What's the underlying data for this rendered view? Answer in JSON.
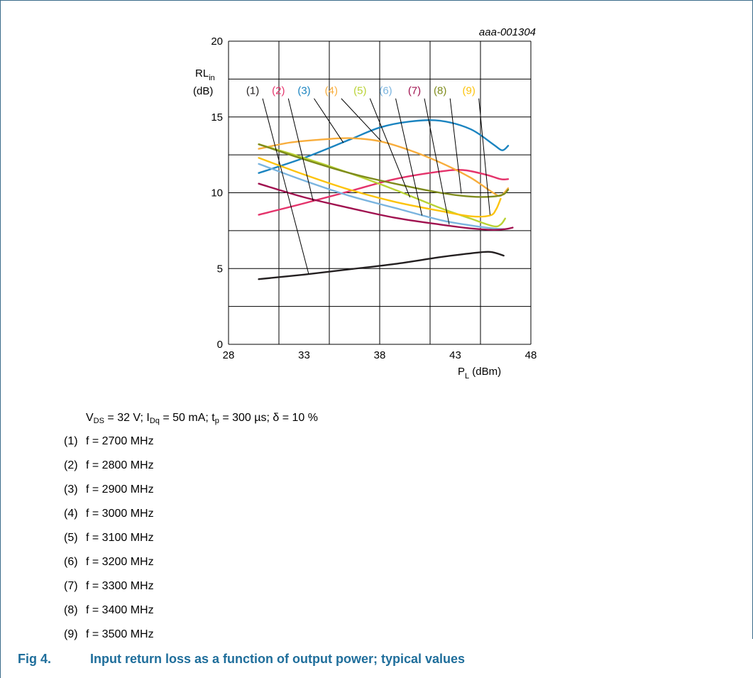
{
  "figure_id": "aaa-001304",
  "conditions": {
    "vds": "V",
    "vds_sub": "DS",
    "vds_val": " = 32 V; ",
    "idq": "I",
    "idq_sub": "Dq",
    "idq_val": " = 50 mA; ",
    "tp": "t",
    "tp_sub": "p",
    "tp_val": " = 300 µs; δ = 10 %"
  },
  "caption": {
    "number": "Fig 4.",
    "text": "Input return loss as a function of output power; typical values"
  },
  "legend": [
    {
      "num": "(1)",
      "text": "f = 2700 MHz"
    },
    {
      "num": "(2)",
      "text": "f = 2800 MHz"
    },
    {
      "num": "(3)",
      "text": "f = 2900 MHz"
    },
    {
      "num": "(4)",
      "text": "f = 3000 MHz"
    },
    {
      "num": "(5)",
      "text": "f = 3100 MHz"
    },
    {
      "num": "(6)",
      "text": "f = 3200 MHz"
    },
    {
      "num": "(7)",
      "text": "f = 3300 MHz"
    },
    {
      "num": "(8)",
      "text": "f = 3400 MHz"
    },
    {
      "num": "(9)",
      "text": "f = 3500 MHz"
    }
  ],
  "chart_data": {
    "type": "line",
    "xlabel": "P",
    "xlabel_sub": "L",
    "xlabel_unit": " (dBm)",
    "ylabel": "RL",
    "ylabel_sub": "in",
    "ylabel_unit": "(dB)",
    "xlim": [
      28,
      48
    ],
    "ylim": [
      0,
      20
    ],
    "xticks": [
      28,
      33,
      38,
      43,
      48
    ],
    "yticks": [
      0,
      5,
      10,
      15,
      20
    ],
    "xgrid_step": 3.333,
    "ygrid_step": 2.5,
    "grid": true,
    "series": [
      {
        "name": "(1)",
        "color": "#231f20",
        "x": [
          30,
          33,
          36,
          39,
          42,
          44,
          45.3,
          46.2
        ],
        "y": [
          4.3,
          4.6,
          4.95,
          5.3,
          5.75,
          6.0,
          6.1,
          5.85
        ]
      },
      {
        "name": "(2)",
        "color": "#e4336b",
        "x": [
          30,
          33,
          36,
          39,
          42,
          43.5,
          45,
          46,
          46.5
        ],
        "y": [
          8.55,
          9.3,
          10.1,
          10.9,
          11.4,
          11.5,
          11.2,
          10.9,
          10.9
        ]
      },
      {
        "name": "(3)",
        "color": "#1b84c0",
        "x": [
          30,
          33,
          36,
          38,
          40,
          42,
          44,
          45.5,
          46.1,
          46.5
        ],
        "y": [
          11.3,
          12.3,
          13.5,
          14.3,
          14.7,
          14.75,
          14.2,
          13.2,
          12.8,
          13.1
        ]
      },
      {
        "name": "(4)",
        "color": "#f8ad3c",
        "x": [
          30,
          32,
          34,
          36,
          38,
          40,
          42,
          44,
          45.5,
          46,
          46.5
        ],
        "y": [
          12.9,
          13.3,
          13.5,
          13.6,
          13.4,
          12.8,
          12.0,
          11.0,
          10.0,
          9.8,
          10.3
        ]
      },
      {
        "name": "(5)",
        "color": "#b9d234",
        "x": [
          30,
          33,
          36,
          39,
          42,
          44,
          45.5,
          46,
          46.3
        ],
        "y": [
          13.2,
          12.3,
          11.3,
          10.2,
          9.0,
          8.3,
          7.8,
          7.9,
          8.3
        ]
      },
      {
        "name": "(6)",
        "color": "#7ab4df",
        "x": [
          30,
          33,
          36,
          39,
          42,
          44,
          45.5,
          46.2
        ],
        "y": [
          11.9,
          10.8,
          9.8,
          9.0,
          8.2,
          7.85,
          7.65,
          7.6
        ]
      },
      {
        "name": "(7)",
        "color": "#a0114f",
        "x": [
          30,
          33,
          36,
          39,
          42,
          44,
          45.5,
          46.3,
          46.8
        ],
        "y": [
          10.6,
          9.7,
          9.0,
          8.35,
          7.9,
          7.65,
          7.55,
          7.6,
          7.7
        ]
      },
      {
        "name": "(8)",
        "color": "#7e8b1c",
        "x": [
          30,
          33,
          36,
          39,
          42,
          44,
          45.5,
          46.2,
          46.5
        ],
        "y": [
          13.2,
          12.2,
          11.3,
          10.6,
          10.0,
          9.75,
          9.75,
          9.9,
          10.2
        ]
      },
      {
        "name": "(9)",
        "color": "#fcc30c",
        "x": [
          30,
          33,
          36,
          39,
          42,
          44,
          45.3,
          45.7,
          46
        ],
        "y": [
          12.3,
          11.2,
          10.2,
          9.4,
          8.8,
          8.45,
          8.5,
          8.9,
          9.6
        ]
      }
    ],
    "annotations": [
      {
        "label": "(1)",
        "color": "#231f20",
        "label_x": 29.6,
        "label_y": 16.5,
        "point_x": 33.3,
        "point_y": 4.65
      },
      {
        "label": "(2)",
        "color": "#e4336b",
        "label_x": 31.3,
        "label_y": 16.5,
        "point_x": 33.6,
        "point_y": 9.45
      },
      {
        "label": "(3)",
        "color": "#1b84c0",
        "label_x": 33.0,
        "label_y": 16.5,
        "point_x": 35.6,
        "point_y": 13.3
      },
      {
        "label": "(4)",
        "color": "#f8ad3c",
        "label_x": 34.8,
        "label_y": 16.5,
        "point_x": 38.1,
        "point_y": 13.4
      },
      {
        "label": "(5)",
        "color": "#b9d234",
        "label_x": 36.7,
        "label_y": 16.5,
        "point_x": 40.0,
        "point_y": 9.7
      },
      {
        "label": "(6)",
        "color": "#7ab4df",
        "label_x": 38.4,
        "label_y": 16.5,
        "point_x": 40.8,
        "point_y": 8.5
      },
      {
        "label": "(7)",
        "color": "#a0114f",
        "label_x": 40.3,
        "label_y": 16.5,
        "point_x": 42.6,
        "point_y": 7.9
      },
      {
        "label": "(8)",
        "color": "#7e8b1c",
        "label_x": 42.0,
        "label_y": 16.5,
        "point_x": 43.4,
        "point_y": 9.95
      },
      {
        "label": "(9)",
        "color": "#fcc30c",
        "label_x": 43.9,
        "label_y": 16.5,
        "point_x": 45.3,
        "point_y": 8.55
      }
    ]
  }
}
